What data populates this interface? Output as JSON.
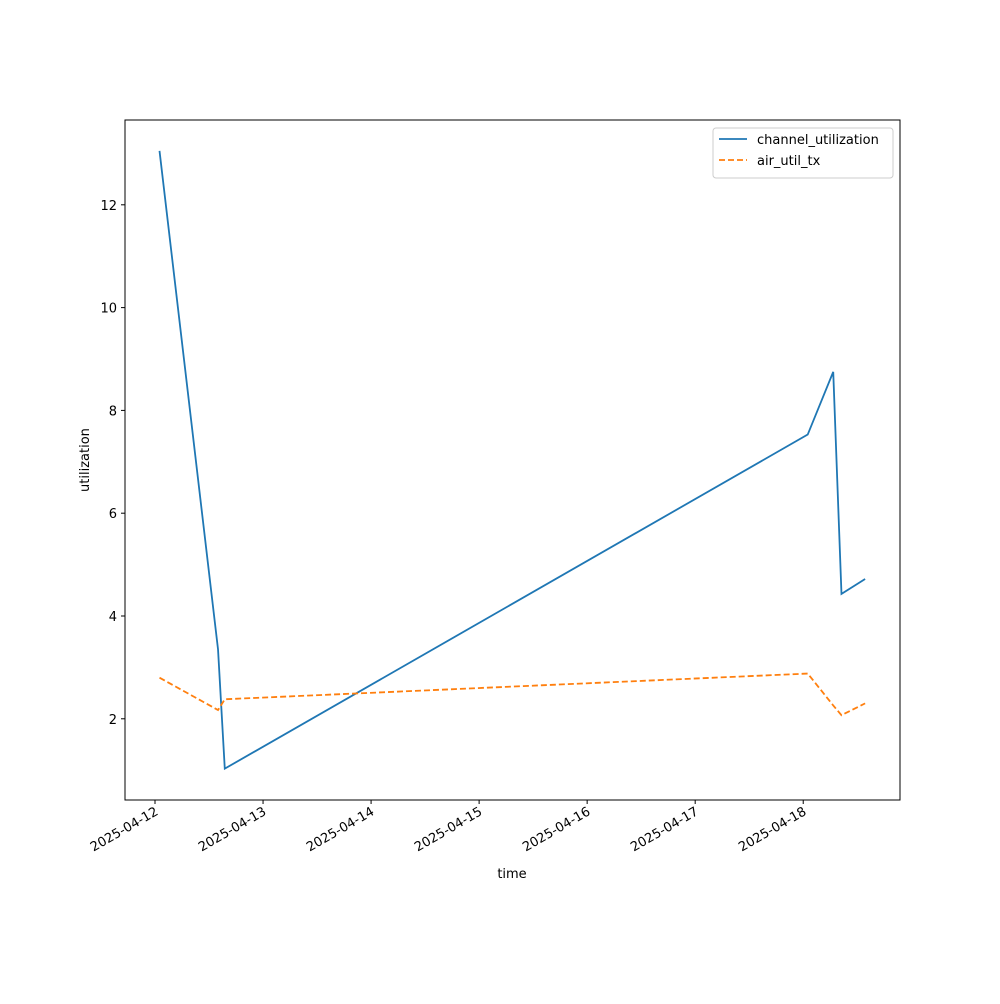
{
  "chart_data": {
    "type": "line",
    "x_label": "time",
    "y_label": "utilization",
    "x": [
      "2025-04-12T01:00",
      "2025-04-12T14:00",
      "2025-04-12T15:30",
      "2025-04-18T01:00",
      "2025-04-18T06:40",
      "2025-04-18T08:30",
      "2025-04-18T13:45"
    ],
    "series": [
      {
        "name": "channel_utilization",
        "color": "#1f77b4",
        "dash": "solid",
        "values": [
          13.05,
          3.35,
          1.03,
          7.53,
          8.75,
          4.43,
          4.72
        ]
      },
      {
        "name": "air_util_tx",
        "color": "#ff7f0e",
        "dash": "dashed",
        "values": [
          2.8,
          2.17,
          2.38,
          2.88,
          2.26,
          2.07,
          2.3
        ]
      }
    ],
    "xlim": [
      "2025-04-11T17:20",
      "2025-04-18T21:30"
    ],
    "xticks": [
      "2025-04-12",
      "2025-04-13",
      "2025-04-14",
      "2025-04-15",
      "2025-04-16",
      "2025-04-17",
      "2025-04-18"
    ],
    "ylim": [
      0.42,
      13.65
    ],
    "yticks": [
      2,
      4,
      6,
      8,
      10,
      12
    ],
    "legend": "upper right",
    "grid": false
  }
}
